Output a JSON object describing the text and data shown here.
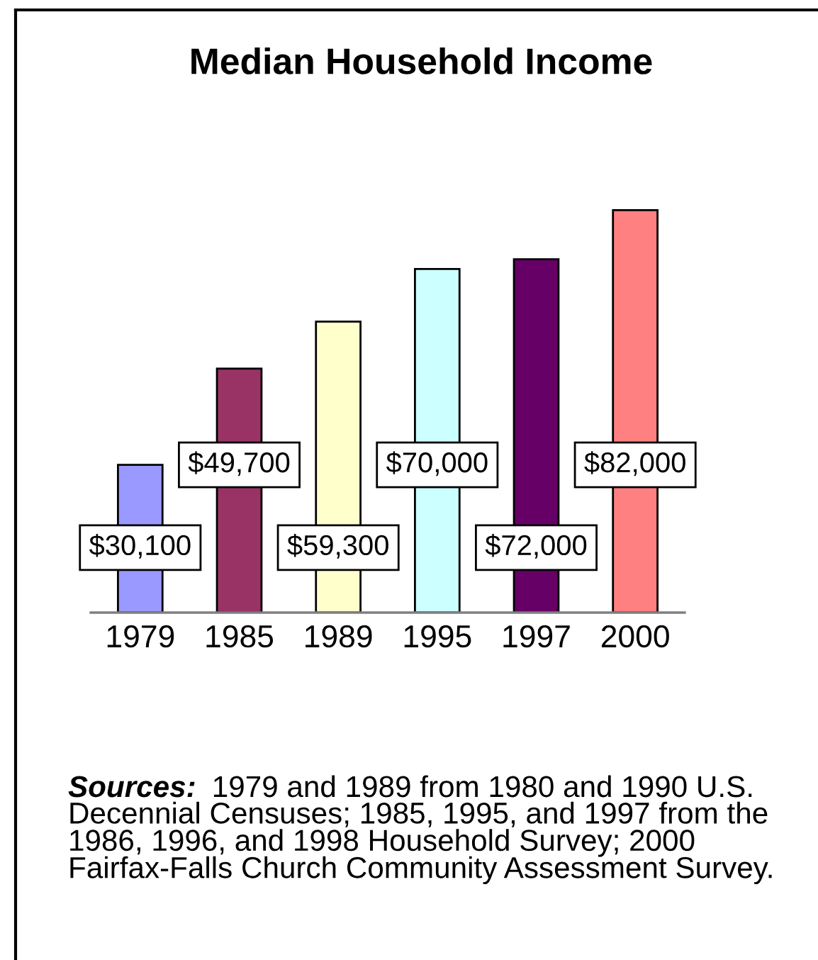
{
  "chart_data": {
    "type": "bar",
    "title": "Median Household Income",
    "categories": [
      "1979",
      "1985",
      "1989",
      "1995",
      "1997",
      "2000"
    ],
    "values": [
      30100,
      49700,
      59300,
      70000,
      72000,
      82000
    ],
    "colors": [
      "#9999ff",
      "#993366",
      "#ffffcc",
      "#ccffff",
      "#660066",
      "#ff8080"
    ],
    "value_labels": [
      "$30,100",
      "$49,700",
      "$59,300",
      "$70,000",
      "$72,000",
      "$82,000"
    ],
    "tick_labels": "x",
    "annotations": [
      "Sources: 1979 and 1989 from 1980 and 1990 U.S. Decennial Censuses; 1985, 1995, and 1997 from the 1986, 1996, and 1998 Household Survey; 2000 Fairfax-Falls Church Community Assessment Survey."
    ]
  }
}
